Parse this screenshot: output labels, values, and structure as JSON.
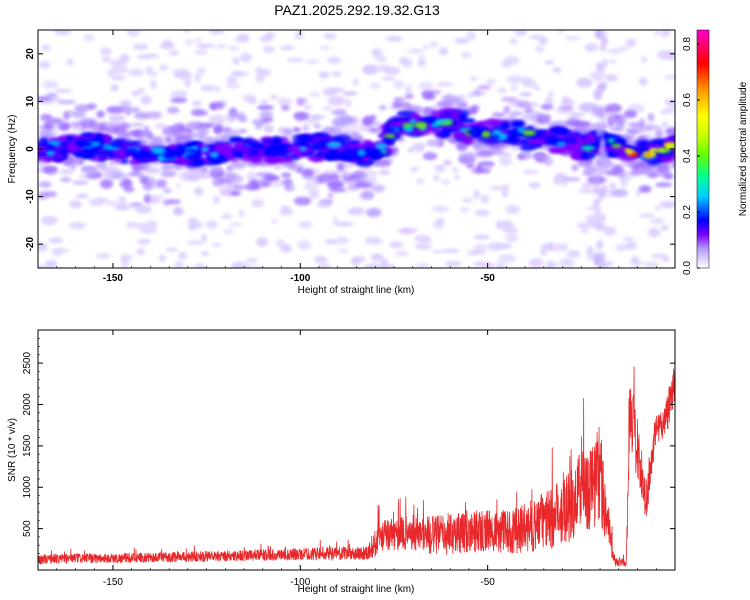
{
  "title": "PAZ1.2025.292.19.32.G13",
  "chart_data": [
    {
      "type": "heatmap",
      "name": "spectrogram",
      "xlabel": "Height of straight line (km)",
      "ylabel": "Frequency (Hz)",
      "xlim": [
        -170,
        0
      ],
      "ylim": [
        -25,
        25
      ],
      "xticks": [
        -150,
        -100,
        -50
      ],
      "yticks": [
        -20,
        -10,
        0,
        10,
        20
      ],
      "colorbar": {
        "label": "Normalized spectral amplitude",
        "range": [
          0,
          0.85
        ],
        "ticks": [
          "0.0",
          "0.2",
          "0.4",
          "0.6",
          "0.8"
        ],
        "colors": [
          "#ffffff",
          "#b79cff",
          "#7a00ff",
          "#0000ff",
          "#00ccff",
          "#00ff99",
          "#66ff00",
          "#ccff00",
          "#ffff00",
          "#ffa000",
          "#ff0000",
          "#ff00cc"
        ]
      },
      "signal_track": {
        "x": [
          -170,
          -160,
          -150,
          -140,
          -130,
          -120,
          -110,
          -100,
          -90,
          -83,
          -78,
          -75,
          -70,
          -65,
          -60,
          -55,
          -50,
          -45,
          -40,
          -35,
          -30,
          -25,
          -20,
          -15,
          -10,
          -5,
          0
        ],
        "freq_hz": [
          0,
          0.5,
          0,
          -1,
          -1,
          -0.5,
          0,
          0.5,
          0,
          -1,
          0,
          5,
          5,
          5,
          6,
          4,
          3,
          3,
          3,
          2,
          2,
          1,
          1,
          1,
          -1,
          -1,
          1
        ]
      }
    },
    {
      "type": "line",
      "name": "snr",
      "xlabel": "Height of straight line (km)",
      "ylabel": "SNR (10 * v/v)",
      "xlim": [
        -170,
        0
      ],
      "ylim": [
        0,
        2900
      ],
      "xticks": [
        -150,
        -100,
        -50
      ],
      "yticks": [
        500,
        1000,
        1500,
        2000,
        2500
      ],
      "color": "#e8282a",
      "series": [
        {
          "name": "SNR",
          "x": [
            -170,
            -160,
            -150,
            -140,
            -130,
            -120,
            -110,
            -100,
            -95,
            -90,
            -85,
            -82,
            -80,
            -78,
            -75,
            -70,
            -65,
            -60,
            -55,
            -50,
            -45,
            -40,
            -35,
            -32,
            -30,
            -27,
            -25,
            -22,
            -20,
            -17,
            -16,
            -15,
            -13,
            -12,
            -10,
            -8,
            -5,
            -3,
            -2,
            0
          ],
          "y": [
            130,
            140,
            140,
            150,
            160,
            170,
            180,
            190,
            200,
            200,
            200,
            210,
            330,
            420,
            420,
            460,
            420,
            440,
            470,
            470,
            460,
            500,
            600,
            640,
            780,
            800,
            1000,
            1000,
            1200,
            300,
            100,
            90,
            100,
            1900,
            1500,
            800,
            1700,
            1800,
            1900,
            2400
          ],
          "spread": [
            60,
            60,
            60,
            60,
            65,
            70,
            70,
            75,
            80,
            80,
            80,
            90,
            180,
            200,
            200,
            220,
            240,
            260,
            260,
            260,
            260,
            300,
            350,
            400,
            450,
            480,
            500,
            550,
            650,
            150,
            60,
            50,
            60,
            500,
            400,
            300,
            200,
            200,
            250,
            350
          ]
        }
      ]
    }
  ]
}
